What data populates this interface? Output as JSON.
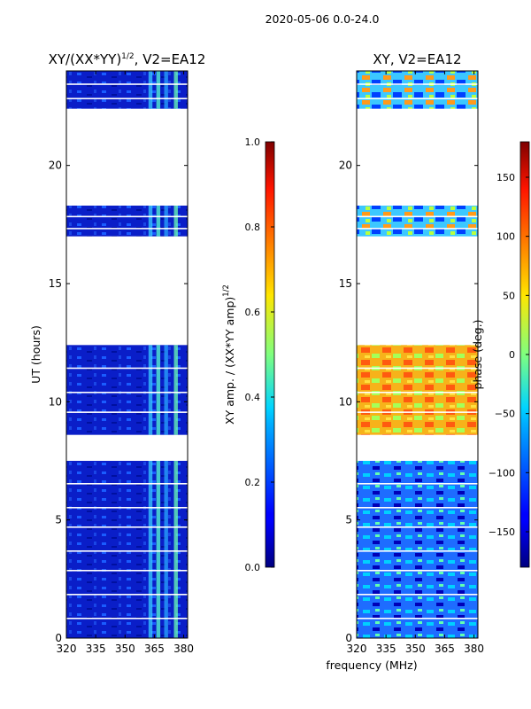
{
  "figure_title": "2020-05-06 0.0-24.0",
  "shared_xlabel": "frequency (MHz)",
  "chart_data": [
    {
      "type": "heatmap",
      "title": "XY/(XX*YY)",
      "title_exponent": "1/2",
      "title_suffix": ", V2=EA12",
      "xlabel": "",
      "ylabel": "UT (hours)",
      "xlim": [
        320,
        382
      ],
      "ylim": [
        0,
        24
      ],
      "xticks": [
        "320",
        "335",
        "350",
        "365",
        "380"
      ],
      "yticks": [
        "0",
        "5",
        "10",
        "15",
        "20"
      ],
      "colormap": "jet",
      "colorbar": {
        "label": "XY amp. / (XX*YY amp)",
        "label_exponent": "1/2",
        "range": [
          0.0,
          1.0
        ],
        "ticks": [
          "0.0",
          "0.2",
          "0.4",
          "0.6",
          "0.8",
          "1.0"
        ]
      },
      "data_blocks_hours": [
        [
          0.0,
          7.5
        ],
        [
          8.6,
          12.4
        ],
        [
          17.0,
          18.3
        ],
        [
          22.4,
          24.0
        ]
      ]
    },
    {
      "type": "heatmap",
      "title": "XY, V2=EA12",
      "xlabel": "",
      "ylabel": "",
      "xlim": [
        320,
        382
      ],
      "ylim": [
        0,
        24
      ],
      "xticks": [
        "320",
        "335",
        "350",
        "365",
        "380"
      ],
      "yticks": [
        "0",
        "5",
        "10",
        "15",
        "20"
      ],
      "colormap": "jet",
      "colorbar": {
        "label": "phase (deg.)",
        "range": [
          -180,
          180
        ],
        "ticks": [
          "−150",
          "−100",
          "−50",
          "0",
          "50",
          "100",
          "150"
        ]
      },
      "data_blocks_hours": [
        [
          0.0,
          7.5
        ],
        [
          8.6,
          12.4
        ],
        [
          17.0,
          18.3
        ],
        [
          22.4,
          24.0
        ]
      ]
    }
  ]
}
